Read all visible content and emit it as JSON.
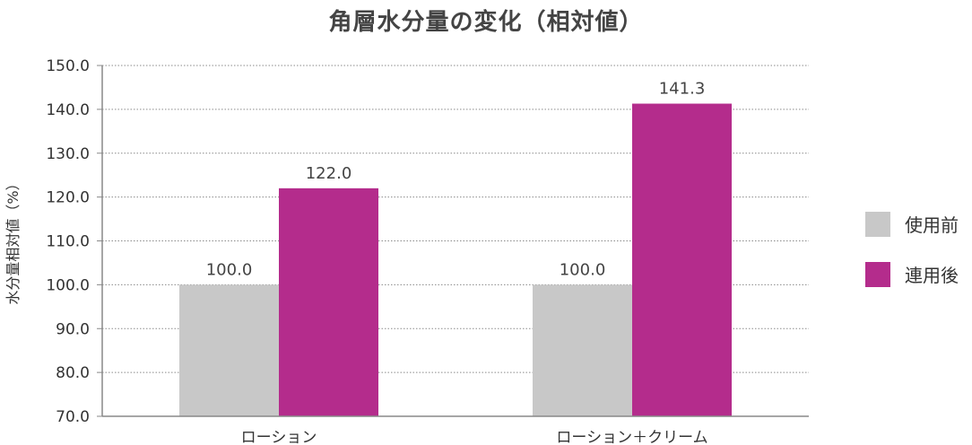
{
  "chart_data": {
    "type": "bar",
    "title": "角層水分量の変化（相対値）",
    "ylabel": "水分量相対値（%）",
    "xlabel": "",
    "categories": [
      "ローション",
      "ローション＋クリーム"
    ],
    "series": [
      {
        "name": "使用前",
        "values": [
          100.0,
          100.0
        ],
        "color": "#c8c8c8"
      },
      {
        "name": "連用後",
        "values": [
          122.0,
          141.3
        ],
        "color": "#b42c8c"
      }
    ],
    "ylim": [
      70,
      150
    ],
    "yticks": [
      "70.0",
      "80.0",
      "90.0",
      "100.0",
      "110.0",
      "120.0",
      "130.0",
      "140.0",
      "150.0"
    ],
    "data_labels": [
      [
        "100.0",
        "100.0"
      ],
      [
        "122.0",
        "141.3"
      ]
    ],
    "grid": true,
    "legend_position": "right"
  }
}
